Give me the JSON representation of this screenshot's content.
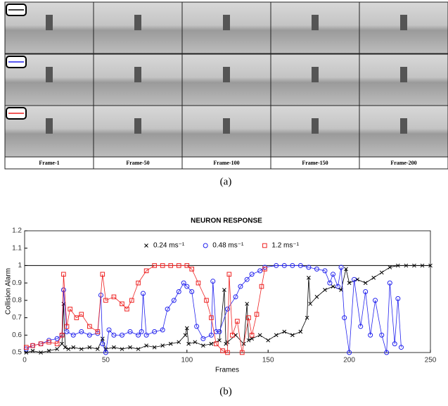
{
  "figure_a": {
    "frames": [
      "Frame-1",
      "Frame-50",
      "Frame-100",
      "Frame-150",
      "Frame-200"
    ],
    "caption": "(a)"
  },
  "caption_b": "(b)",
  "chart_data": {
    "type": "line",
    "title": "NEURON RESPONSE",
    "x_label": "Frames",
    "y_label": "Collision Alarm",
    "xlim": [
      0,
      250
    ],
    "ylim": [
      0.5,
      1.2
    ],
    "xticks": [
      0,
      50,
      100,
      150,
      200,
      250
    ],
    "yticks": [
      0.5,
      0.6,
      0.7,
      0.8,
      0.9,
      1,
      1.1,
      1.2
    ],
    "hline": 1,
    "legend": "top",
    "series": [
      {
        "name": "0.24 ms⁻¹",
        "color": "#000000",
        "marker": "x",
        "x": [
          1,
          5,
          10,
          15,
          20,
          23,
          24,
          25,
          27,
          30,
          35,
          40,
          45,
          48,
          50,
          55,
          60,
          65,
          70,
          75,
          80,
          85,
          90,
          95,
          99,
          100,
          101,
          105,
          110,
          115,
          120,
          123,
          124,
          125,
          130,
          135,
          137,
          138,
          140,
          145,
          150,
          155,
          160,
          165,
          170,
          174,
          175,
          176,
          180,
          185,
          190,
          195,
          198,
          200,
          205,
          210,
          215,
          220,
          225,
          230,
          235,
          240,
          245,
          250
        ],
        "values": [
          0.5,
          0.51,
          0.5,
          0.51,
          0.52,
          0.55,
          0.78,
          0.53,
          0.52,
          0.53,
          0.52,
          0.53,
          0.52,
          0.58,
          0.52,
          0.53,
          0.52,
          0.53,
          0.52,
          0.54,
          0.53,
          0.54,
          0.55,
          0.56,
          0.6,
          0.64,
          0.55,
          0.56,
          0.54,
          0.55,
          0.57,
          0.86,
          0.55,
          0.56,
          0.6,
          0.55,
          0.78,
          0.57,
          0.58,
          0.6,
          0.57,
          0.6,
          0.62,
          0.6,
          0.62,
          0.7,
          0.93,
          0.78,
          0.82,
          0.86,
          0.88,
          0.86,
          0.98,
          0.9,
          0.92,
          0.9,
          0.93,
          0.96,
          0.99,
          1.0,
          1.0,
          1.0,
          1.0,
          1.0
        ]
      },
      {
        "name": "0.48 ms⁻¹",
        "color": "#2222ee",
        "marker": "circle",
        "x": [
          1,
          5,
          10,
          15,
          20,
          23,
          24,
          26,
          30,
          35,
          40,
          45,
          47,
          48,
          50,
          52,
          55,
          60,
          65,
          70,
          72,
          73,
          75,
          80,
          85,
          88,
          92,
          95,
          98,
          100,
          103,
          106,
          110,
          115,
          116,
          118,
          120,
          125,
          130,
          133,
          137,
          140,
          145,
          148,
          155,
          160,
          165,
          170,
          175,
          180,
          185,
          188,
          190,
          193,
          195,
          197,
          200,
          203,
          207,
          210,
          213,
          216,
          220,
          223,
          225,
          228,
          230,
          232
        ],
        "values": [
          0.52,
          0.54,
          0.55,
          0.57,
          0.58,
          0.6,
          0.86,
          0.62,
          0.6,
          0.62,
          0.6,
          0.61,
          0.83,
          0.55,
          0.5,
          0.63,
          0.6,
          0.6,
          0.62,
          0.6,
          0.62,
          0.84,
          0.6,
          0.62,
          0.63,
          0.75,
          0.8,
          0.85,
          0.9,
          0.88,
          0.85,
          0.65,
          0.58,
          0.6,
          0.91,
          0.62,
          0.62,
          0.75,
          0.82,
          0.88,
          0.92,
          0.95,
          0.97,
          0.99,
          1.0,
          1.0,
          1.0,
          1.0,
          0.99,
          0.98,
          0.97,
          0.9,
          0.95,
          0.88,
          0.99,
          0.7,
          0.5,
          0.92,
          0.65,
          0.85,
          0.6,
          0.8,
          0.6,
          0.5,
          0.9,
          0.55,
          0.81,
          0.53
        ]
      },
      {
        "name": "1.2 ms⁻¹",
        "color": "#ee2222",
        "marker": "square",
        "x": [
          1,
          5,
          10,
          15,
          20,
          23,
          24,
          26,
          28,
          32,
          35,
          40,
          45,
          48,
          50,
          55,
          60,
          63,
          66,
          70,
          75,
          80,
          85,
          90,
          95,
          100,
          103,
          107,
          112,
          115,
          118,
          122,
          125,
          126,
          128,
          131,
          134,
          138,
          140,
          143,
          146,
          148
        ],
        "values": [
          0.53,
          0.54,
          0.55,
          0.56,
          0.55,
          0.6,
          0.95,
          0.65,
          0.75,
          0.7,
          0.72,
          0.65,
          0.62,
          0.95,
          0.8,
          0.82,
          0.78,
          0.75,
          0.8,
          0.9,
          0.97,
          1.0,
          1.0,
          1.0,
          1.0,
          1.0,
          0.98,
          0.9,
          0.8,
          0.7,
          0.55,
          0.51,
          0.5,
          0.95,
          0.6,
          0.68,
          0.5,
          0.7,
          0.6,
          0.72,
          0.88,
          0.98
        ]
      }
    ]
  }
}
